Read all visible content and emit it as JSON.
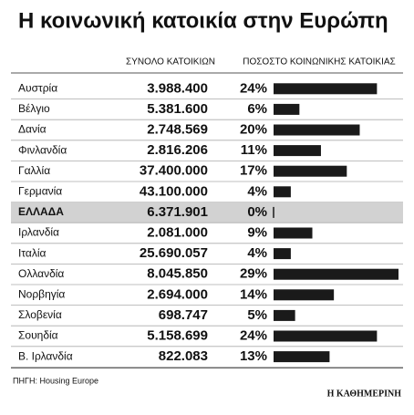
{
  "chart_data": {
    "type": "bar",
    "title": "Η κοινωνική κατοικία στην Ευρώπη",
    "headers": [
      "ΣΥΝΟΛΟ ΚΑΤΟΙΚΙΩΝ",
      "ΠΟΣΟΣΤΟ ΚΟΙΝΩΝΙΚΗΣ ΚΑΤΟΙΚΙΑΣ"
    ],
    "categories": [
      "Αυστρία",
      "Βέλγιο",
      "Δανία",
      "Φινλανδία",
      "Γαλλία",
      "Γερμανία",
      "ΕΛΛΑΔΑ",
      "Ιρλανδία",
      "Ιταλία",
      "Ολλανδία",
      "Νορβηγία",
      "Σλοβενία",
      "Σουηδία",
      "Β. Ιρλανδία"
    ],
    "totals": [
      "3.988.400",
      "5.381.600",
      "2.748.569",
      "2.816.206",
      "37.400.000",
      "43.100.000",
      "6.371.901",
      "2.081.000",
      "25.690.057",
      "8.045.850",
      "2.694.000",
      "698.747",
      "5.158.699",
      "822.083"
    ],
    "values": [
      24,
      6,
      20,
      11,
      17,
      4,
      0,
      9,
      4,
      29,
      14,
      5,
      24,
      13
    ],
    "value_labels": [
      "24%",
      "6%",
      "20%",
      "11%",
      "17%",
      "4%",
      "0%",
      "9%",
      "4%",
      "29%",
      "14%",
      "5%",
      "24%",
      "13%"
    ],
    "xlim": [
      0,
      29
    ],
    "color": "#1a1a1a",
    "highlight": "ΕΛΛΑΔΑ",
    "source": "ΠΗΓΗ: Housing Europe",
    "brand": "Η ΚΑΘΗΜΕΡΙΝΗ"
  }
}
